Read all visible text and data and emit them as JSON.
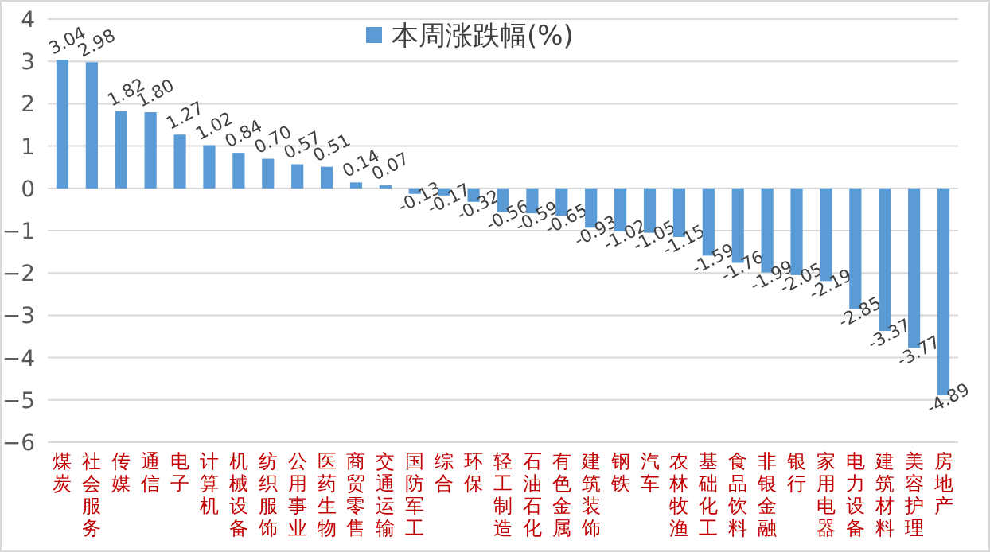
{
  "chart_data": {
    "type": "bar",
    "categories": [
      "煤炭",
      "社会服务",
      "传媒",
      "通信",
      "电子",
      "计算机",
      "机械设备",
      "纺织服饰",
      "公用事业",
      "医药生物",
      "商贸零售",
      "交通运输",
      "国防军工",
      "综合",
      "环保",
      "轻工制造",
      "石油石化",
      "有色金属",
      "建筑装饰",
      "钢铁",
      "汽车",
      "农林牧渔",
      "基础化工",
      "食品饮料",
      "非银金融",
      "银行",
      "家用电器",
      "电力设备",
      "建筑材料",
      "美容护理",
      "房地产"
    ],
    "series": [
      {
        "name": "本周涨跌幅(%)",
        "color": "#5b9bd5",
        "values": [
          3.04,
          2.98,
          1.82,
          1.8,
          1.27,
          1.02,
          0.84,
          0.7,
          0.57,
          0.51,
          0.14,
          0.07,
          -0.13,
          -0.17,
          -0.32,
          -0.56,
          -0.59,
          -0.65,
          -0.93,
          -1.02,
          -1.05,
          -1.15,
          -1.59,
          -1.76,
          -1.99,
          -2.05,
          -2.19,
          -2.85,
          -3.37,
          -3.77,
          -4.89
        ],
        "value_labels": [
          "3.04",
          "2.98",
          "1.82",
          "1.80",
          "1.27",
          "1.02",
          "0.84",
          "0.70",
          "0.57",
          "0.51",
          "0.14",
          "0.07",
          "-0.13",
          "-0.17",
          "-0.32",
          "-0.56",
          "-0.59",
          "-0.65",
          "-0.93",
          "-1.02",
          "-1.05",
          "-1.15",
          "-1.59",
          "-1.76",
          "-1.99",
          "-2.05",
          "-2.19",
          "-2.85",
          "-3.37",
          "-3.77",
          "-4.89"
        ]
      }
    ],
    "ylim": [
      -6,
      4
    ],
    "yticks": [
      -6,
      -5,
      -4,
      -3,
      -2,
      -1,
      0,
      1,
      2,
      3,
      4
    ],
    "grid": "y",
    "legend": "top"
  }
}
